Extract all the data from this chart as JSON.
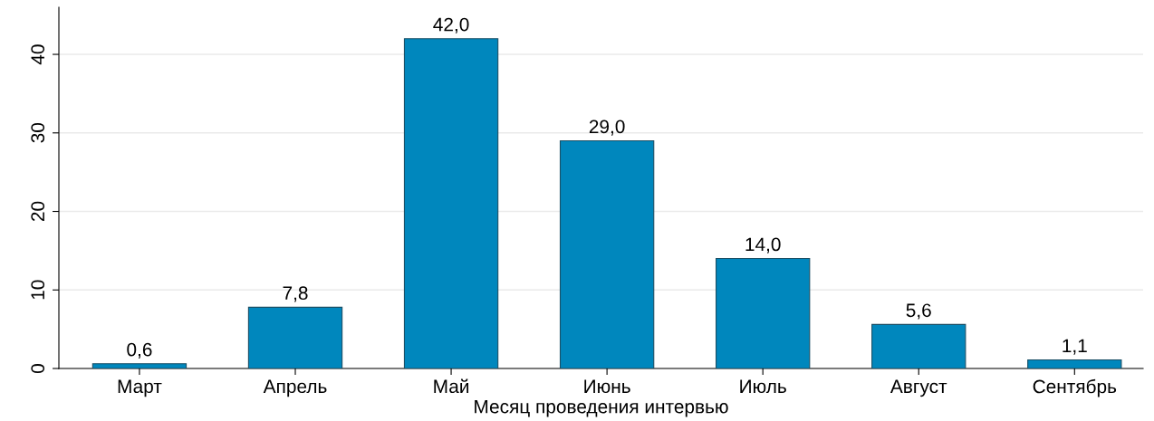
{
  "chart_data": {
    "type": "bar",
    "xlabel": "Месяц проведения интервью",
    "categories": [
      "Март",
      "Апрель",
      "Май",
      "Июнь",
      "Июль",
      "Август",
      "Сентябрь"
    ],
    "values": [
      0.6,
      7.8,
      42.0,
      29.0,
      14.0,
      5.6,
      1.1
    ],
    "value_labels": [
      "0,6",
      "7,8",
      "42,0",
      "29,0",
      "14,0",
      "5,6",
      "1,1"
    ],
    "color": "#0087bd",
    "ylim": [
      0,
      46
    ],
    "yticks": [
      0,
      10,
      20,
      30,
      40
    ],
    "grid": "y"
  }
}
